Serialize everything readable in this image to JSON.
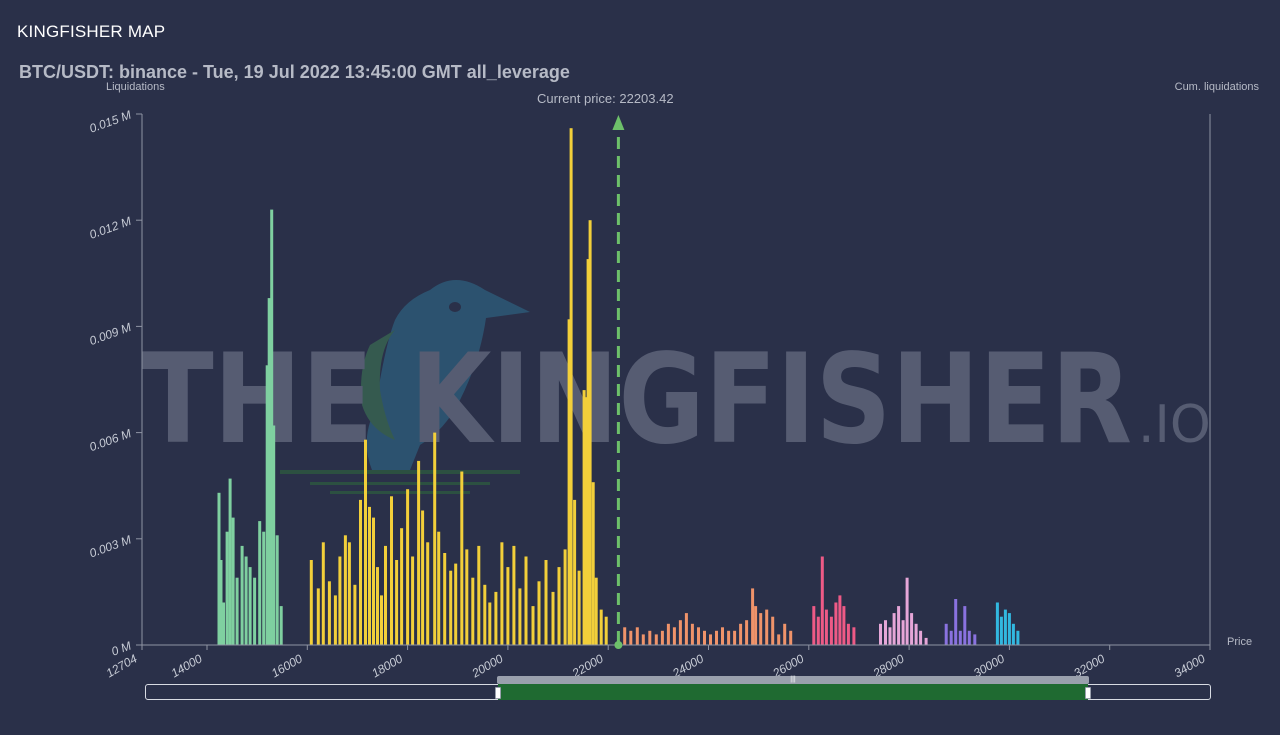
{
  "header": {
    "app_title": "KINGFISHER MAP",
    "chart_title": "BTC/USDT: binance - Tue, 19 Jul 2022 13:45:00 GMT all_leverage"
  },
  "watermark": {
    "main": "THE KINGFISHER",
    "suffix": ".IO"
  },
  "colors": {
    "background": "#2a3049",
    "axis": "#8f94a3",
    "current_price_line": "#6dc06a",
    "navigator_fill": "#1f6a31",
    "band_green": "#7fd0a0",
    "band_yellow": "#f2cf3a",
    "band_orange": "#f0936a",
    "band_red": "#ee5a86",
    "band_pink": "#e6a6d8",
    "band_purple": "#8a72e0",
    "band_cyan": "#32b8e0"
  },
  "chart_data": {
    "type": "bar",
    "xlabel": "Price",
    "ylabel": "Liquidations",
    "y2label": "Cum. liquidations",
    "xlim": [
      12704,
      34000
    ],
    "ylim": [
      0,
      0.015
    ],
    "x_ticks": [
      "12704",
      "14000",
      "16000",
      "18000",
      "20000",
      "22000",
      "24000",
      "26000",
      "28000",
      "30000",
      "32000",
      "34000"
    ],
    "y_ticks": [
      "0 M",
      "0.003 M",
      "0.006 M",
      "0.009 M",
      "0.012 M",
      "0.015 M"
    ],
    "current_price": 22203.42,
    "current_price_label": "Current price: 22203.42",
    "bins": [
      {
        "x": 14240,
        "y": 0.0043
      },
      {
        "x": 14280,
        "y": 0.0024
      },
      {
        "x": 14330,
        "y": 0.0012
      },
      {
        "x": 14400,
        "y": 0.0032
      },
      {
        "x": 14460,
        "y": 0.0047
      },
      {
        "x": 14520,
        "y": 0.0036
      },
      {
        "x": 14600,
        "y": 0.0019
      },
      {
        "x": 14700,
        "y": 0.0028
      },
      {
        "x": 14780,
        "y": 0.0025
      },
      {
        "x": 14860,
        "y": 0.0022
      },
      {
        "x": 14950,
        "y": 0.0019
      },
      {
        "x": 15050,
        "y": 0.0035
      },
      {
        "x": 15130,
        "y": 0.0032
      },
      {
        "x": 15200,
        "y": 0.0079
      },
      {
        "x": 15240,
        "y": 0.0098
      },
      {
        "x": 15290,
        "y": 0.0123
      },
      {
        "x": 15330,
        "y": 0.0062
      },
      {
        "x": 15400,
        "y": 0.0031
      },
      {
        "x": 15480,
        "y": 0.0011
      },
      {
        "x": 16080,
        "y": 0.0024
      },
      {
        "x": 16220,
        "y": 0.0016
      },
      {
        "x": 16320,
        "y": 0.0029
      },
      {
        "x": 16440,
        "y": 0.0018
      },
      {
        "x": 16560,
        "y": 0.0014
      },
      {
        "x": 16650,
        "y": 0.0025
      },
      {
        "x": 16760,
        "y": 0.0031
      },
      {
        "x": 16840,
        "y": 0.0029
      },
      {
        "x": 16950,
        "y": 0.0017
      },
      {
        "x": 17060,
        "y": 0.0041
      },
      {
        "x": 17160,
        "y": 0.0058
      },
      {
        "x": 17240,
        "y": 0.0039
      },
      {
        "x": 17320,
        "y": 0.0036
      },
      {
        "x": 17400,
        "y": 0.0022
      },
      {
        "x": 17480,
        "y": 0.0014
      },
      {
        "x": 17560,
        "y": 0.0028
      },
      {
        "x": 17680,
        "y": 0.0042
      },
      {
        "x": 17780,
        "y": 0.0024
      },
      {
        "x": 17880,
        "y": 0.0033
      },
      {
        "x": 18000,
        "y": 0.0044
      },
      {
        "x": 18100,
        "y": 0.0025
      },
      {
        "x": 18220,
        "y": 0.0052
      },
      {
        "x": 18300,
        "y": 0.0038
      },
      {
        "x": 18400,
        "y": 0.0029
      },
      {
        "x": 18540,
        "y": 0.006
      },
      {
        "x": 18620,
        "y": 0.0032
      },
      {
        "x": 18740,
        "y": 0.0026
      },
      {
        "x": 18860,
        "y": 0.0021
      },
      {
        "x": 18960,
        "y": 0.0023
      },
      {
        "x": 19080,
        "y": 0.0049
      },
      {
        "x": 19180,
        "y": 0.0027
      },
      {
        "x": 19300,
        "y": 0.0019
      },
      {
        "x": 19420,
        "y": 0.0028
      },
      {
        "x": 19540,
        "y": 0.0017
      },
      {
        "x": 19640,
        "y": 0.0012
      },
      {
        "x": 19760,
        "y": 0.0015
      },
      {
        "x": 19880,
        "y": 0.0029
      },
      {
        "x": 20000,
        "y": 0.0022
      },
      {
        "x": 20120,
        "y": 0.0028
      },
      {
        "x": 20240,
        "y": 0.0016
      },
      {
        "x": 20360,
        "y": 0.0025
      },
      {
        "x": 20500,
        "y": 0.0011
      },
      {
        "x": 20620,
        "y": 0.0018
      },
      {
        "x": 20760,
        "y": 0.0024
      },
      {
        "x": 20900,
        "y": 0.0015
      },
      {
        "x": 21020,
        "y": 0.0022
      },
      {
        "x": 21140,
        "y": 0.0027
      },
      {
        "x": 21220,
        "y": 0.0092
      },
      {
        "x": 21260,
        "y": 0.0146
      },
      {
        "x": 21330,
        "y": 0.0041
      },
      {
        "x": 21420,
        "y": 0.0021
      },
      {
        "x": 21520,
        "y": 0.0072
      },
      {
        "x": 21560,
        "y": 0.007
      },
      {
        "x": 21600,
        "y": 0.0109
      },
      {
        "x": 21640,
        "y": 0.012
      },
      {
        "x": 21700,
        "y": 0.0046
      },
      {
        "x": 21760,
        "y": 0.0019
      },
      {
        "x": 21860,
        "y": 0.001
      },
      {
        "x": 21960,
        "y": 0.0008
      },
      {
        "x": 22330,
        "y": 0.0005
      },
      {
        "x": 22450,
        "y": 0.0004
      },
      {
        "x": 22580,
        "y": 0.0005
      },
      {
        "x": 22700,
        "y": 0.0003
      },
      {
        "x": 22830,
        "y": 0.0004
      },
      {
        "x": 22960,
        "y": 0.0003
      },
      {
        "x": 23080,
        "y": 0.0004
      },
      {
        "x": 23200,
        "y": 0.0006
      },
      {
        "x": 23320,
        "y": 0.0005
      },
      {
        "x": 23440,
        "y": 0.0007
      },
      {
        "x": 23560,
        "y": 0.0009
      },
      {
        "x": 23680,
        "y": 0.0006
      },
      {
        "x": 23800,
        "y": 0.0005
      },
      {
        "x": 23920,
        "y": 0.0004
      },
      {
        "x": 24040,
        "y": 0.0003
      },
      {
        "x": 24160,
        "y": 0.0004
      },
      {
        "x": 24280,
        "y": 0.0005
      },
      {
        "x": 24400,
        "y": 0.0004
      },
      {
        "x": 24520,
        "y": 0.0004
      },
      {
        "x": 24640,
        "y": 0.0006
      },
      {
        "x": 24760,
        "y": 0.0007
      },
      {
        "x": 24880,
        "y": 0.0016
      },
      {
        "x": 24940,
        "y": 0.0011
      },
      {
        "x": 25040,
        "y": 0.0009
      },
      {
        "x": 25160,
        "y": 0.001
      },
      {
        "x": 25280,
        "y": 0.0008
      },
      {
        "x": 25400,
        "y": 0.0003
      },
      {
        "x": 25520,
        "y": 0.0006
      },
      {
        "x": 25640,
        "y": 0.0004
      },
      {
        "x": 26100,
        "y": 0.0011
      },
      {
        "x": 26190,
        "y": 0.0008
      },
      {
        "x": 26270,
        "y": 0.0025
      },
      {
        "x": 26350,
        "y": 0.001
      },
      {
        "x": 26450,
        "y": 0.0008
      },
      {
        "x": 26540,
        "y": 0.0012
      },
      {
        "x": 26620,
        "y": 0.0014
      },
      {
        "x": 26700,
        "y": 0.0011
      },
      {
        "x": 26790,
        "y": 0.0006
      },
      {
        "x": 26900,
        "y": 0.0005
      },
      {
        "x": 27430,
        "y": 0.0006
      },
      {
        "x": 27530,
        "y": 0.0007
      },
      {
        "x": 27620,
        "y": 0.0005
      },
      {
        "x": 27700,
        "y": 0.0009
      },
      {
        "x": 27790,
        "y": 0.0011
      },
      {
        "x": 27880,
        "y": 0.0007
      },
      {
        "x": 27960,
        "y": 0.0019
      },
      {
        "x": 28050,
        "y": 0.0009
      },
      {
        "x": 28140,
        "y": 0.0006
      },
      {
        "x": 28230,
        "y": 0.0004
      },
      {
        "x": 28340,
        "y": 0.0002
      },
      {
        "x": 28740,
        "y": 0.0006
      },
      {
        "x": 28840,
        "y": 0.0004
      },
      {
        "x": 28930,
        "y": 0.0013
      },
      {
        "x": 29020,
        "y": 0.0004
      },
      {
        "x": 29110,
        "y": 0.0011
      },
      {
        "x": 29200,
        "y": 0.0004
      },
      {
        "x": 29310,
        "y": 0.0003
      },
      {
        "x": 29760,
        "y": 0.0012
      },
      {
        "x": 29840,
        "y": 0.0008
      },
      {
        "x": 29920,
        "y": 0.001
      },
      {
        "x": 30000,
        "y": 0.0009
      },
      {
        "x": 30080,
        "y": 0.0006
      },
      {
        "x": 30170,
        "y": 0.0004
      }
    ],
    "bands": [
      {
        "from": 14200,
        "to": 15520,
        "color_key": "band_green"
      },
      {
        "from": 16000,
        "to": 22040,
        "color_key": "band_yellow"
      },
      {
        "from": 22300,
        "to": 25700,
        "color_key": "band_orange"
      },
      {
        "from": 26050,
        "to": 26950,
        "color_key": "band_red"
      },
      {
        "from": 27400,
        "to": 28400,
        "color_key": "band_pink"
      },
      {
        "from": 28700,
        "to": 29350,
        "color_key": "band_purple"
      },
      {
        "from": 29700,
        "to": 30300,
        "color_key": "band_cyan"
      }
    ],
    "legend": "none",
    "grid": false
  }
}
